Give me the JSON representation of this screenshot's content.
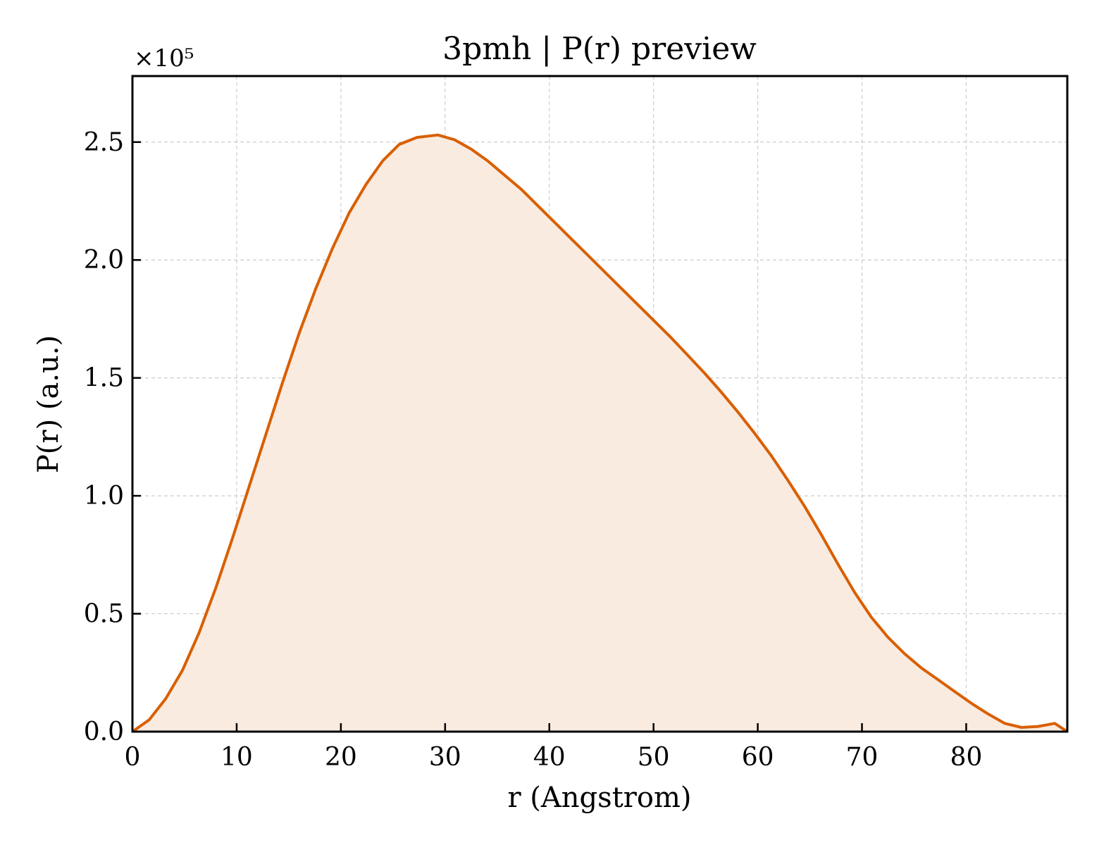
{
  "chart_data": {
    "type": "area",
    "title": "3pmh | P(r) preview",
    "xlabel": "r (Angstrom)",
    "ylabel": "P(r) (a.u.)",
    "y_multiplier_label": "×10⁵",
    "y_multiplier": 100000,
    "xlim": [
      0,
      89.7
    ],
    "ylim": [
      0,
      2.78
    ],
    "x_ticks": [
      0,
      10,
      20,
      30,
      40,
      50,
      60,
      70,
      80
    ],
    "y_ticks": [
      0.0,
      0.5,
      1.0,
      1.5,
      2.0,
      2.5
    ],
    "y_tick_labels": [
      "0.0",
      "0.5",
      "1.0",
      "1.5",
      "2.0",
      "2.5"
    ],
    "grid": true,
    "colors": {
      "line": "#d95f02",
      "fill": "#f9ebe0"
    },
    "series": [
      {
        "x": [
          0,
          1.6,
          3.2,
          4.8,
          6.4,
          8.0,
          9.6,
          11.2,
          12.8,
          14.4,
          16.0,
          17.6,
          19.2,
          20.8,
          22.4,
          24.0,
          25.6,
          27.3,
          29.3,
          30.9,
          32.5,
          34.1,
          35.7,
          37.3,
          38.9,
          40.5,
          42.1,
          43.7,
          45.3,
          46.9,
          48.5,
          50.1,
          51.7,
          53.3,
          54.9,
          56.5,
          58.1,
          59.7,
          61.3,
          62.9,
          64.5,
          66.1,
          67.7,
          69.3,
          70.9,
          72.5,
          74.1,
          75.7,
          77.3,
          78.9,
          80.5,
          82.1,
          83.7,
          85.3,
          86.9,
          88.5,
          89.7
        ],
        "y": [
          0.0,
          0.05,
          0.14,
          0.26,
          0.42,
          0.61,
          0.82,
          1.04,
          1.26,
          1.48,
          1.69,
          1.88,
          2.05,
          2.2,
          2.32,
          2.42,
          2.49,
          2.52,
          2.53,
          2.51,
          2.47,
          2.42,
          2.36,
          2.3,
          2.23,
          2.16,
          2.09,
          2.02,
          1.95,
          1.88,
          1.81,
          1.74,
          1.67,
          1.595,
          1.52,
          1.44,
          1.355,
          1.265,
          1.17,
          1.065,
          0.955,
          0.835,
          0.71,
          0.59,
          0.485,
          0.4,
          0.33,
          0.27,
          0.22,
          0.17,
          0.12,
          0.075,
          0.035,
          0.018,
          0.022,
          0.035,
          0.0
        ]
      }
    ]
  }
}
